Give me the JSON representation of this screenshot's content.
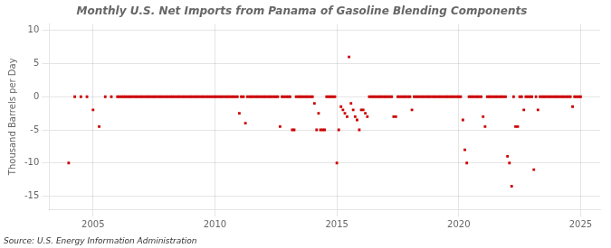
{
  "chart_data": {
    "type": "scatter",
    "title": "Monthly U.S. Net Imports from Panama of Gasoline Blending Components",
    "ylabel": "Thousand Barrels per Day",
    "annotation": "Source: U.S. Energy Information Administration",
    "color": "#cc0000",
    "marker": "square",
    "grid": true,
    "xlim": [
      2003.2,
      2025.8
    ],
    "xticks": [
      2005,
      2010,
      2015,
      2020,
      2025
    ],
    "ylim": [
      -17,
      11
    ],
    "yticks": [
      -15,
      -10,
      -5,
      0,
      5,
      10
    ],
    "x": [
      2004.0,
      2004.25,
      2004.5,
      2004.75,
      2005.0,
      2005.25,
      2005.5,
      2005.75,
      2006.0,
      2006.08,
      2006.17,
      2006.25,
      2006.33,
      2006.42,
      2006.5,
      2006.58,
      2006.67,
      2006.75,
      2006.83,
      2006.92,
      2007.0,
      2007.08,
      2007.17,
      2007.25,
      2007.33,
      2007.42,
      2007.5,
      2007.58,
      2007.67,
      2007.75,
      2007.83,
      2007.92,
      2008.0,
      2008.08,
      2008.17,
      2008.25,
      2008.33,
      2008.42,
      2008.5,
      2008.58,
      2008.67,
      2008.75,
      2008.83,
      2008.92,
      2009.0,
      2009.08,
      2009.17,
      2009.25,
      2009.33,
      2009.42,
      2009.5,
      2009.58,
      2009.67,
      2009.75,
      2009.83,
      2009.92,
      2010.0,
      2010.08,
      2010.17,
      2010.25,
      2010.33,
      2010.42,
      2010.5,
      2010.58,
      2010.67,
      2010.75,
      2010.83,
      2010.92,
      2011.0,
      2011.08,
      2011.17,
      2011.25,
      2011.33,
      2011.42,
      2011.5,
      2011.58,
      2011.67,
      2011.75,
      2011.83,
      2011.92,
      2012.0,
      2012.08,
      2012.17,
      2012.25,
      2012.33,
      2012.42,
      2012.5,
      2012.58,
      2012.67,
      2012.75,
      2012.83,
      2012.92,
      2013.0,
      2013.08,
      2013.17,
      2013.25,
      2013.33,
      2013.42,
      2013.5,
      2013.58,
      2013.67,
      2013.75,
      2013.83,
      2013.92,
      2014.0,
      2014.08,
      2014.17,
      2014.25,
      2014.33,
      2014.42,
      2014.5,
      2014.58,
      2014.67,
      2014.75,
      2014.83,
      2014.92,
      2015.0,
      2015.08,
      2015.17,
      2015.25,
      2015.33,
      2015.42,
      2015.5,
      2015.58,
      2015.67,
      2015.75,
      2015.83,
      2015.92,
      2016.0,
      2016.08,
      2016.17,
      2016.25,
      2016.33,
      2016.42,
      2016.5,
      2016.58,
      2016.67,
      2016.75,
      2016.83,
      2016.92,
      2017.0,
      2017.08,
      2017.17,
      2017.25,
      2017.33,
      2017.42,
      2017.5,
      2017.58,
      2017.67,
      2017.75,
      2017.83,
      2017.92,
      2018.0,
      2018.08,
      2018.17,
      2018.25,
      2018.33,
      2018.42,
      2018.5,
      2018.58,
      2018.67,
      2018.75,
      2018.83,
      2018.92,
      2019.0,
      2019.08,
      2019.17,
      2019.25,
      2019.33,
      2019.42,
      2019.5,
      2019.58,
      2019.67,
      2019.75,
      2019.83,
      2019.92,
      2020.0,
      2020.08,
      2020.17,
      2020.25,
      2020.33,
      2020.42,
      2020.5,
      2020.58,
      2020.67,
      2020.75,
      2020.83,
      2020.92,
      2021.0,
      2021.08,
      2021.17,
      2021.25,
      2021.33,
      2021.42,
      2021.5,
      2021.58,
      2021.67,
      2021.75,
      2021.83,
      2021.92,
      2022.0,
      2022.08,
      2022.17,
      2022.25,
      2022.33,
      2022.42,
      2022.5,
      2022.58,
      2022.67,
      2022.75,
      2022.83,
      2022.92,
      2023.0,
      2023.08,
      2023.17,
      2023.25,
      2023.33,
      2023.42,
      2023.5,
      2023.58,
      2023.67,
      2023.75,
      2023.83,
      2023.92,
      2024.0,
      2024.08,
      2024.17,
      2024.25,
      2024.33,
      2024.42,
      2024.5,
      2024.58,
      2024.67,
      2024.75,
      2024.83,
      2024.92,
      2025.0
    ],
    "values": [
      -10.0,
      0.0,
      0.0,
      0.0,
      -2.0,
      -4.5,
      0.0,
      0.0,
      0.0,
      0.0,
      0.0,
      0.0,
      0.0,
      0.0,
      0.0,
      0.0,
      0.0,
      0.0,
      0.0,
      0.0,
      0.0,
      0.0,
      0.0,
      0.0,
      0.0,
      0.0,
      0.0,
      0.0,
      0.0,
      0.0,
      0.0,
      0.0,
      0.0,
      0.0,
      0.0,
      0.0,
      0.0,
      0.0,
      0.0,
      0.0,
      0.0,
      0.0,
      0.0,
      0.0,
      0.0,
      0.0,
      0.0,
      0.0,
      0.0,
      0.0,
      0.0,
      0.0,
      0.0,
      0.0,
      0.0,
      0.0,
      0.0,
      0.0,
      0.0,
      0.0,
      0.0,
      0.0,
      0.0,
      0.0,
      0.0,
      0.0,
      0.0,
      0.0,
      -2.5,
      0.0,
      0.0,
      -4.0,
      0.0,
      0.0,
      0.0,
      0.0,
      0.0,
      0.0,
      0.0,
      0.0,
      0.0,
      0.0,
      0.0,
      0.0,
      0.0,
      0.0,
      0.0,
      0.0,
      -4.5,
      0.0,
      0.0,
      0.0,
      0.0,
      0.0,
      -5.0,
      -5.0,
      0.0,
      0.0,
      0.0,
      0.0,
      0.0,
      0.0,
      0.0,
      0.0,
      0.0,
      -1.0,
      -5.0,
      -2.5,
      -5.0,
      -5.0,
      -5.0,
      0.0,
      0.0,
      0.0,
      0.0,
      0.0,
      -10.0,
      -5.0,
      -1.5,
      -2.0,
      -2.5,
      -3.0,
      6.0,
      -1.0,
      -2.0,
      -3.0,
      -3.5,
      -5.0,
      -2.0,
      -2.0,
      -2.5,
      -3.0,
      0.0,
      0.0,
      0.0,
      0.0,
      0.0,
      0.0,
      0.0,
      0.0,
      0.0,
      0.0,
      0.0,
      0.0,
      -3.0,
      -3.0,
      0.0,
      0.0,
      0.0,
      0.0,
      0.0,
      0.0,
      0.0,
      -2.0,
      0.0,
      0.0,
      0.0,
      0.0,
      0.0,
      0.0,
      0.0,
      0.0,
      0.0,
      0.0,
      0.0,
      0.0,
      0.0,
      0.0,
      0.0,
      0.0,
      0.0,
      0.0,
      0.0,
      0.0,
      0.0,
      0.0,
      0.0,
      0.0,
      -3.5,
      -8.0,
      -10.0,
      0.0,
      0.0,
      0.0,
      0.0,
      0.0,
      0.0,
      0.0,
      -3.0,
      -4.5,
      0.0,
      0.0,
      0.0,
      0.0,
      0.0,
      0.0,
      0.0,
      0.0,
      0.0,
      0.0,
      -9.0,
      -10.0,
      -13.5,
      0.0,
      -4.5,
      -4.5,
      0.0,
      0.0,
      -2.0,
      0.0,
      0.0,
      0.0,
      0.0,
      -11.0,
      0.0,
      -2.0,
      0.0,
      0.0,
      0.0,
      0.0,
      0.0,
      0.0,
      0.0,
      0.0,
      0.0,
      0.0,
      0.0,
      0.0,
      0.0,
      0.0,
      0.0,
      0.0,
      -1.5,
      0.0,
      0.0,
      0.0,
      0.0
    ]
  }
}
